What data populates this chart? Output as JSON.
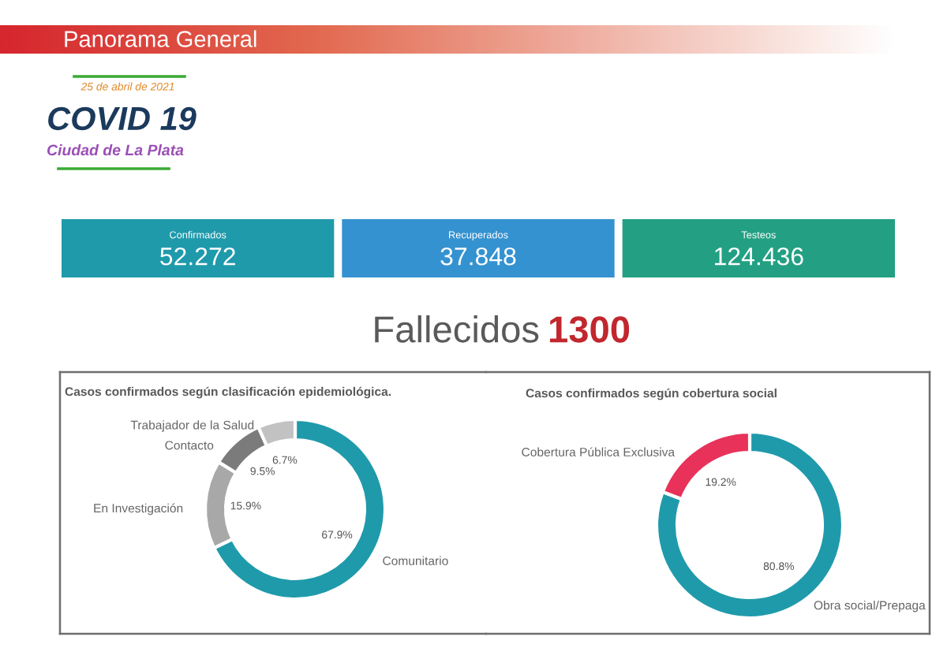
{
  "chart_data": [
    {
      "type": "other",
      "title": "Panorama General",
      "subtitle": "25 de abril de 2021",
      "annotations": [
        "COVID 19",
        "Ciudad de La Plata"
      ],
      "categories": [
        "Confirmados",
        "Recuperados",
        "Testeos"
      ],
      "value_labels": [
        "52.272",
        "37.848",
        "124.436"
      ],
      "colors": [
        "#1f9aab",
        "#3592d0",
        "#23a083"
      ]
    },
    {
      "type": "other",
      "title": "Fallecidos",
      "value_labels": [
        "1300"
      ],
      "colors": [
        "#c1272d"
      ]
    },
    {
      "type": "donut",
      "title": "Casos confirmados según clasificación epidemiológica.",
      "categories": [
        "Comunitario",
        "En Investigación",
        "Contacto",
        "Trabajador de la Salud"
      ],
      "values": [
        67.9,
        15.9,
        9.5,
        6.7
      ],
      "value_labels": [
        "67.9%",
        "15.9%",
        "9.5%",
        "6.7%"
      ],
      "colors": [
        "#1f9aab",
        "#a8a8a8",
        "#7b7b7b",
        "#c2c2c2"
      ]
    },
    {
      "type": "donut",
      "title": "Casos confirmados según cobertura social",
      "categories": [
        "Obra social/Prepaga",
        "Cobertura Pública Exclusiva"
      ],
      "values": [
        80.8,
        19.2
      ],
      "value_labels": [
        "80.8%",
        "19.2%"
      ],
      "colors": [
        "#1f9aab",
        "#e8325a"
      ]
    }
  ]
}
